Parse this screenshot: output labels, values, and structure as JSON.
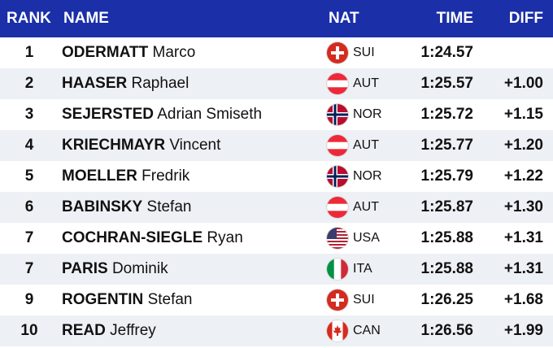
{
  "header": {
    "rank": "RANK",
    "name": "NAME",
    "nat": "NAT",
    "time": "TIME",
    "diff": "DIFF"
  },
  "rows": [
    {
      "rank": "1",
      "last": "ODERMATT",
      "first": "Marco",
      "flag_icon": "switzerland-flag-icon",
      "nat": "SUI",
      "time": "1:24.57",
      "diff": ""
    },
    {
      "rank": "2",
      "last": "HAASER",
      "first": "Raphael",
      "flag_icon": "austria-flag-icon",
      "nat": "AUT",
      "time": "1:25.57",
      "diff": "+1.00"
    },
    {
      "rank": "3",
      "last": "SEJERSTED",
      "first": "Adrian Smiseth",
      "flag_icon": "norway-flag-icon",
      "nat": "NOR",
      "time": "1:25.72",
      "diff": "+1.15"
    },
    {
      "rank": "4",
      "last": "KRIECHMAYR",
      "first": "Vincent",
      "flag_icon": "austria-flag-icon",
      "nat": "AUT",
      "time": "1:25.77",
      "diff": "+1.20"
    },
    {
      "rank": "5",
      "last": "MOELLER",
      "first": "Fredrik",
      "flag_icon": "norway-flag-icon",
      "nat": "NOR",
      "time": "1:25.79",
      "diff": "+1.22"
    },
    {
      "rank": "6",
      "last": "BABINSKY",
      "first": "Stefan",
      "flag_icon": "austria-flag-icon",
      "nat": "AUT",
      "time": "1:25.87",
      "diff": "+1.30"
    },
    {
      "rank": "7",
      "last": "COCHRAN-SIEGLE",
      "first": "Ryan",
      "flag_icon": "usa-flag-icon",
      "nat": "USA",
      "time": "1:25.88",
      "diff": "+1.31"
    },
    {
      "rank": "7",
      "last": "PARIS",
      "first": "Dominik",
      "flag_icon": "italy-flag-icon",
      "nat": "ITA",
      "time": "1:25.88",
      "diff": "+1.31"
    },
    {
      "rank": "9",
      "last": "ROGENTIN",
      "first": "Stefan",
      "flag_icon": "switzerland-flag-icon",
      "nat": "SUI",
      "time": "1:26.25",
      "diff": "+1.68"
    },
    {
      "rank": "10",
      "last": "READ",
      "first": "Jeffrey",
      "flag_icon": "canada-flag-icon",
      "nat": "CAN",
      "time": "1:26.56",
      "diff": "+1.99"
    }
  ],
  "colors": {
    "header_bg": "#1a2fa8",
    "header_text": "#ffffff",
    "row_alt": "#edf0f5",
    "text": "#111111"
  }
}
